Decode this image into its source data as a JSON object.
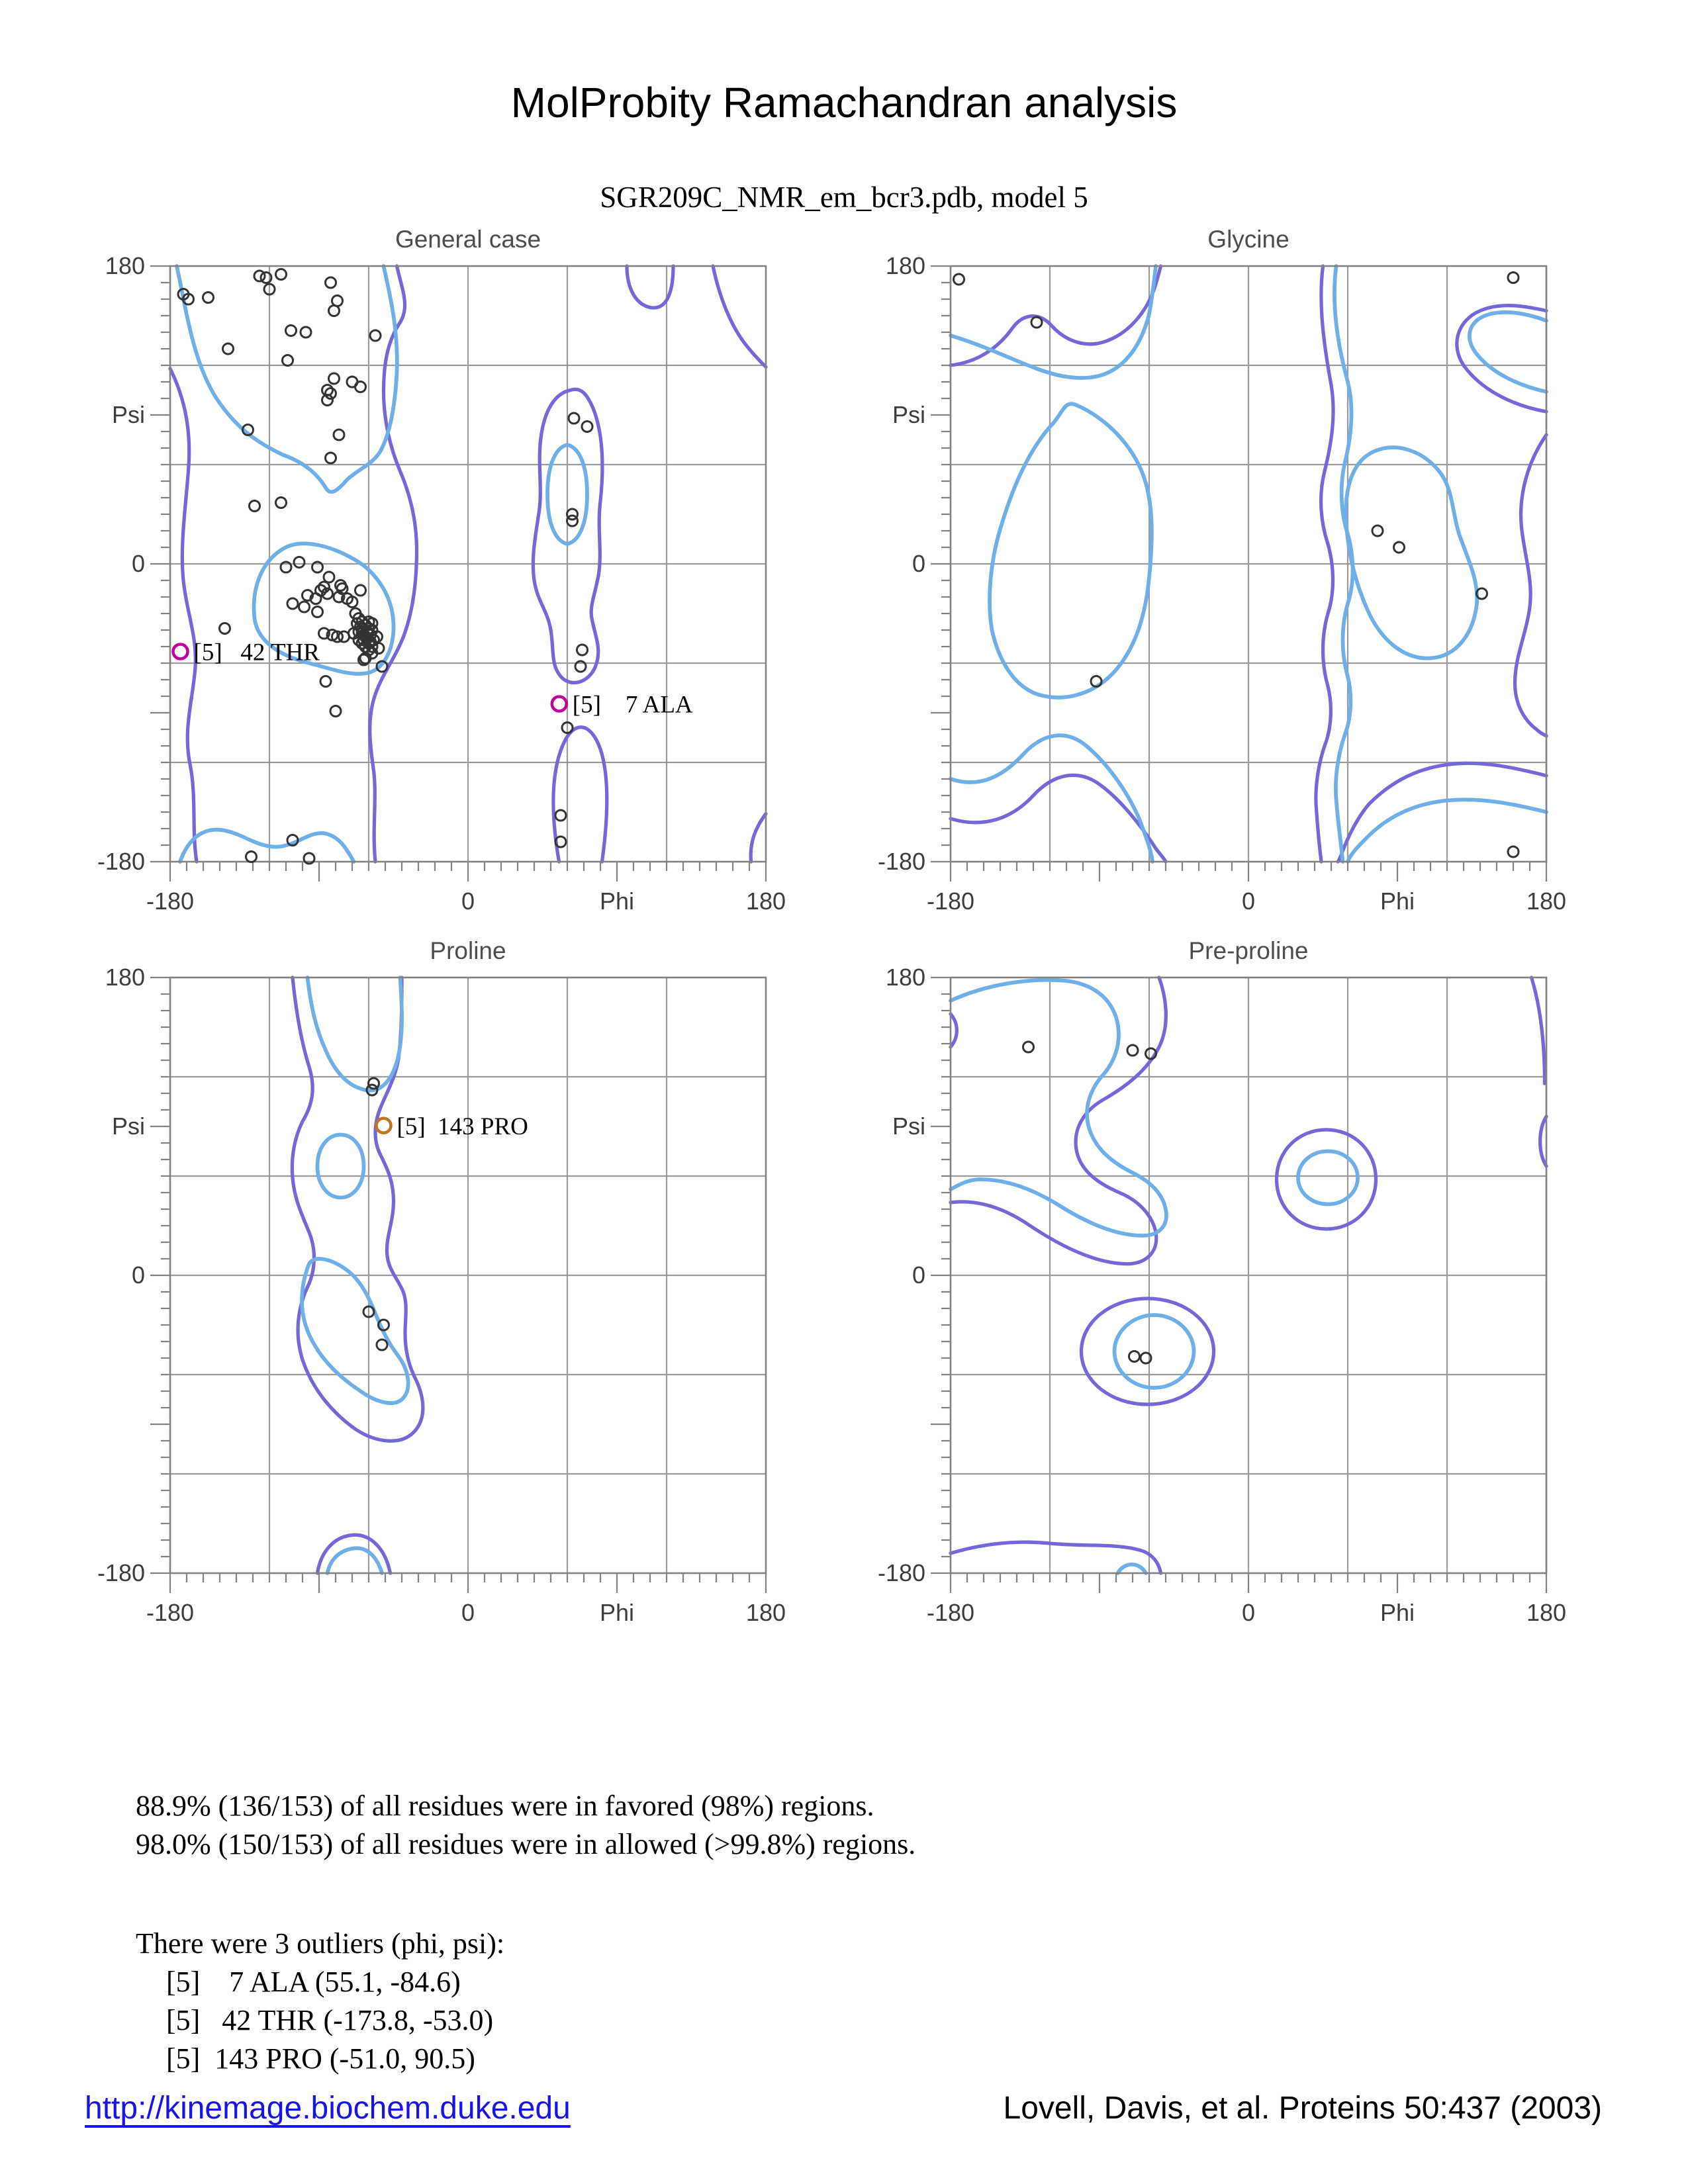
{
  "page": {
    "title": "MolProbity Ramachandran analysis",
    "subtitle": "SGR209C_NMR_em_bcr3.pdb, model 5"
  },
  "colors": {
    "favored_contour": "#6dafe6",
    "allowed_contour": "#7467d8",
    "grid": "#9a9a9a",
    "frame": "#828282",
    "point": "#333333",
    "outlier_magenta": "#c2009b",
    "outlier_orange": "#c4731c",
    "link": "#1813e6"
  },
  "axis_labels": {
    "y_top": "180",
    "y_mid": "Psi",
    "y_zero": "0",
    "y_bottom": "-180",
    "x_left": "-180",
    "x_zero": "0",
    "x_mid": "Phi",
    "x_right": "180"
  },
  "chart_data": [
    {
      "type": "scatter",
      "id": "general-case",
      "title": "General case",
      "xlabel": "Phi",
      "ylabel": "Psi",
      "xlim": [
        -180,
        180
      ],
      "ylim": [
        -180,
        180
      ],
      "points": [
        [
          -126,
          174
        ],
        [
          -122,
          173
        ],
        [
          -113,
          175
        ],
        [
          -120,
          166
        ],
        [
          -83,
          170
        ],
        [
          -172,
          163
        ],
        [
          -169,
          160
        ],
        [
          -157,
          161
        ],
        [
          -79,
          159
        ],
        [
          -81,
          153
        ],
        [
          -107,
          141
        ],
        [
          -98,
          140
        ],
        [
          -56,
          138
        ],
        [
          -145,
          130
        ],
        [
          -109,
          123
        ],
        [
          -81,
          112
        ],
        [
          -70,
          110
        ],
        [
          -65,
          107
        ],
        [
          -85,
          105
        ],
        [
          -83,
          103
        ],
        [
          -85,
          99
        ],
        [
          -133,
          81
        ],
        [
          -78,
          78
        ],
        [
          -83,
          64
        ],
        [
          -113,
          37
        ],
        [
          -129,
          35
        ],
        [
          64,
          88
        ],
        [
          72,
          83
        ],
        [
          63,
          30
        ],
        [
          63,
          26
        ],
        [
          69,
          -52
        ],
        [
          68,
          -62
        ],
        [
          60,
          -99
        ],
        [
          56,
          -152
        ],
        [
          56,
          -168
        ],
        [
          -110,
          -2
        ],
        [
          -102,
          1
        ],
        [
          -91,
          -2
        ],
        [
          -84,
          -8
        ],
        [
          -87,
          -14
        ],
        [
          -89,
          -16
        ],
        [
          -85,
          -18
        ],
        [
          -77,
          -13
        ],
        [
          -76,
          -15
        ],
        [
          -97,
          -19
        ],
        [
          -92,
          -21
        ],
        [
          -106,
          -24
        ],
        [
          -99,
          -26
        ],
        [
          -91,
          -29
        ],
        [
          -78,
          -20
        ],
        [
          -73,
          -21
        ],
        [
          -70,
          -23
        ],
        [
          -65,
          -16
        ],
        [
          -87,
          -42
        ],
        [
          -82,
          -43
        ],
        [
          -79,
          -44
        ],
        [
          -75,
          -44
        ],
        [
          -58,
          -36
        ],
        [
          -55,
          -44
        ],
        [
          -54,
          -51
        ],
        [
          -58,
          -54
        ],
        [
          -62,
          -57
        ],
        [
          -63,
          -58
        ],
        [
          -52,
          -62
        ],
        [
          -86,
          -71
        ],
        [
          -80,
          -89
        ],
        [
          -147,
          -39
        ],
        [
          -68,
          -30
        ],
        [
          -66,
          -33
        ],
        [
          -64,
          -35
        ],
        [
          -62,
          -37
        ],
        [
          -60,
          -39
        ],
        [
          -66,
          -41
        ],
        [
          -63,
          -43
        ],
        [
          -61,
          -45
        ],
        [
          -59,
          -47
        ],
        [
          -64,
          -48
        ],
        [
          -62,
          -50
        ],
        [
          -60,
          -52
        ],
        [
          -58,
          -50
        ],
        [
          -57,
          -46
        ],
        [
          -65,
          -38
        ],
        [
          -67,
          -36
        ],
        [
          -69,
          -42
        ],
        [
          -61,
          -41
        ],
        [
          -59,
          -43
        ],
        [
          -63,
          -46
        ],
        [
          -60,
          -35
        ],
        [
          -58,
          -40
        ],
        [
          -64,
          -42
        ],
        [
          -62,
          -44
        ],
        [
          -66,
          -46
        ],
        [
          -60,
          -48
        ],
        [
          -106,
          -167
        ],
        [
          -131,
          -177
        ],
        [
          -96,
          -178
        ]
      ],
      "outliers": [
        {
          "phi": -173.8,
          "psi": -53.0,
          "label": "[5]   42 THR",
          "color": "#c2009b"
        },
        {
          "phi": 55.1,
          "psi": -84.6,
          "label": "[5]    7 ALA",
          "color": "#c2009b"
        }
      ],
      "contours": {
        "favored": [
          "M -176,180 C -170,152 -166,122 -152,100 C -140,82 -127,73 -112,66 C -101,62 -92,56 -86,46 C -83,41 -79,44 -73,51 C -65,58 -58,60 -53,68 C -47,79 -44,96 -43,116 C -42,141 -47,162 -51,180",
          "M -112,9 C -125,1 -131,-15 -129,-33 C -127,-48 -112,-56 -96,-60 C -84,-63 -71,-68 -61,-66 C -51,-64 -45,-52 -45,-38 C -45,-24 -51,-11 -63,-1 C -77,9 -99,17 -112,9 Z",
          "M -174,-180 C -169,-166 -160,-159 -148,-161 C -136,-163 -128,-171 -116,-171 C -104,-171 -96,-161 -86,-163 C -78,-165 -74,-171 -69,-180",
          "M 60,72 C 52,70 48,58 48,42 C 48,26 52,14 60,12 C 68,14 72,26 72,42 C 72,58 68,70 60,72 Z"
        ],
        "allowed": [
          "M -180,118 C -171,100 -167,80 -169,56 C -171,31 -174,10 -172,-10 C -170,-30 -163,-45 -165,-65 C -167,-85 -172,-101 -168,-121 C -164,-141 -167,-160 -164,-180",
          "M -43,180 C -40,166 -35,156 -41,146 C -49,134 -51,120 -51,104 C -51,87 -47,70 -41,56 C -35,42 -31,26 -31,8 C -31,-10 -33,-28 -39,-44 C -45,-59 -53,-68 -57,-82 C -61,-96 -59,-111 -57,-125 C -55,-141 -58,-161 -56,-180",
          "M 55,-180 C 50,-151 50,-125 58,-108 C 64,-95 74,-95 80,-112 C 86,-130 84,-158 81,-180",
          "M 171,-180 C 170,-168 174,-159 180,-151",
          "M 62,105 C 52,103 46,92 44,76 C 42,60 45,46 43,32 C 41,18 38,4 40,-10 C 42,-23 48,-28 50,-40 C 52,-52 50,-61 56,-68 C 62,-75 73,-72 77,-62 C 81,-52 77,-44 75,-34 C 73,-26 77,-18 79,-6 C 81,8 78,22 80,38 C 82,57 82,77 76,93 C 72,103 68,107 62,105 Z",
          "M 96,180 C 96,167 101,157 110,155 C 120,153 124,164 124,180",
          "M 148,180 C 152,161 159,143 169,131 C 173,126 177,122 180,119"
        ]
      }
    },
    {
      "type": "scatter",
      "id": "glycine",
      "title": "Glycine",
      "xlabel": "Phi",
      "ylabel": "Psi",
      "xlim": [
        -180,
        180
      ],
      "ylim": [
        -180,
        180
      ],
      "points": [
        [
          -175,
          172
        ],
        [
          -128,
          146
        ],
        [
          160,
          173
        ],
        [
          78,
          20
        ],
        [
          91,
          10
        ],
        [
          141,
          -18
        ],
        [
          -92,
          -71
        ],
        [
          160,
          -174
        ]
      ],
      "outliers": [],
      "contours": {
        "favored": [
          "M -180,138 C -160,132 -144,124 -128,118 C -112,112 -96,110 -84,116 C -72,122 -64,135 -60,151 C -58,162 -57,171 -56,180",
          "M 53,180 C 50,156 54,132 60,110 C 64,94 62,76 58,60 C 55,46 56,30 60,18 C 64,4 64,-12 60,-24 C 56,-38 56,-54 60,-68 C 63,-80 62,-94 58,-104 C 54,-116 52,-130 53,-142 C 54,-156 56,-169 57,-180",
          "M -104,96 C -86,88 -70,72 -63,52 C -57,34 -58,12 -60,-8 C -62,-30 -68,-50 -80,-64 C -92,-78 -110,-84 -127,-79 C -142,-74 -151,-58 -155,-40 C -158,-22 -156,1 -150,21 C -143,45 -133,69 -118,85 C -112,92 -111,99 -104,96 Z",
          "M 76,68 C 62,62 58,44 59,26 C 60,8 64,-10 72,-28 C 80,-46 94,-58 110,-57 C 126,-56 136,-42 138,-24 C 139,-10 133,2 128,16 C 123,30 124,44 116,55 C 106,68 90,74 76,68 Z",
          "M -180,-130 C -162,-136 -148,-128 -136,-115 C -124,-102 -110,-100 -98,-110 C -86,-120 -74,-136 -66,-154 C -62,-165 -59,-172 -58,-180",
          "M 180,104 C 162,108 146,116 137,128 C 130,138 134,148 146,151 C 158,154 172,150 180,147",
          "M 180,-150 C 160,-145 140,-141 120,-143 C 100,-145 84,-153 72,-165 C 66,-171 62,-175 60,-180"
        ],
        "allowed": [
          "M -180,120 C -163,122 -151,131 -143,142 C -136,152 -126,152 -119,144 C -110,134 -97,130 -85,135 C -72,140 -62,152 -57,166 C -55,172 -54,176 -53,180",
          "M 45,180 C 42,156 46,130 50,108 C 53,90 50,72 46,56 C 42,40 44,24 48,12 C 52,-2 52,-18 48,-30 C 44,-44 44,-60 48,-74 C 51,-86 50,-100 46,-110 C 42,-122 40,-136 41,-148 C 42,-162 43,-172 44,-180",
          "M -180,-154 C -160,-160 -143,-154 -130,-140 C -117,-126 -102,-124 -89,-134 C -77,-143 -65,-158 -56,-172 C -53,-176 -51,-178 -50,-180",
          "M 180,92 C 158,96 140,106 130,120 C 122,132 126,147 140,153 C 154,159 170,155 180,153",
          "M 180,-128 C 160,-123 141,-119 123,-121 C 103,-123 87,-131 73,-145 C 66,-153 60,-165 56,-176 C 55,-178 55,-179 54,-180",
          "M 180,78 C 169,62 163,42 165,22 C 167,4 172,-10 170,-26 C 168,-42 161,-56 161,-72 C 161,-84 166,-94 174,-100 C 176,-102 178,-103 180,-104"
        ]
      }
    },
    {
      "type": "scatter",
      "id": "proline",
      "title": "Proline",
      "xlabel": "Phi",
      "ylabel": "Psi",
      "xlim": [
        -180,
        180
      ],
      "ylim": [
        -180,
        180
      ],
      "points": [
        [
          -57,
          116
        ],
        [
          -58,
          112
        ],
        [
          -60,
          -22
        ],
        [
          -51,
          -30
        ],
        [
          -52,
          -42
        ]
      ],
      "outliers": [
        {
          "phi": -51.0,
          "psi": 90.5,
          "label": "[5]  143 PRO",
          "color": "#c4731c"
        }
      ],
      "contours": {
        "favored": [
          "M -97,180 C -95,163 -92,149 -86,136 C -80,122 -72,114 -62,112 C -52,110 -45,119 -42,133 C -39,147 -40,164 -41,180",
          "M -77,85 C -69,85 -63,77 -63,66 C -63,55 -69,47 -77,47 C -85,47 -91,55 -91,66 C -91,77 -85,85 -77,85 Z",
          "M -96,7 C -102,-8 -102,-24 -95,-38 C -88,-52 -77,-62 -65,-70 C -55,-77 -44,-80 -39,-74 C -34,-68 -36,-57 -42,-49 C -48,-41 -52,-33 -56,-23 C -60,-13 -65,-3 -73,3 C -81,9 -92,13 -96,7 Z",
          "M -85,-180 C -83,-171 -77,-166 -69,-165 C -61,-164 -55,-170 -52,-180"
        ],
        "allowed": [
          "M -106,180 C -104,160 -101,142 -96,126 C -92,113 -94,103 -100,93 C -105,83 -107,71 -106,59 C -105,46 -100,36 -96,26 C -92,16 -92,5 -96,-5 C -103,-19 -105,-35 -100,-51 C -94,-69 -82,-83 -68,-93 C -56,-101 -41,-103 -33,-95 C -25,-87 -26,-74 -32,-62 C -36,-54 -38,-45 -38,-35 C -38,-25 -36,-16 -40,-8 C -44,0 -49,5 -49,15 C -49,25 -45,33 -45,45 C -45,57 -49,65 -53,73 C -57,81 -57,91 -53,101 C -49,111 -44,119 -42,131 C -40,147 -40,164 -40,180",
          "M -91,-180 C -89,-167 -81,-158 -70,-157 C -59,-156 -50,-165 -47,-180"
        ]
      }
    },
    {
      "type": "scatter",
      "id": "pre-proline",
      "title": "Pre-proline",
      "xlabel": "Phi",
      "ylabel": "Psi",
      "xlim": [
        -180,
        180
      ],
      "ylim": [
        -180,
        180
      ],
      "points": [
        [
          -133,
          138
        ],
        [
          -70,
          136
        ],
        [
          -59,
          134
        ],
        [
          -69,
          -49
        ],
        [
          -62,
          -50
        ]
      ],
      "outliers": [],
      "contours": {
        "favored": [
          "M -180,166 C -158,176 -132,180 -110,178 C -94,176 -84,168 -80,156 C -76,143 -80,130 -88,121 C -96,112 -100,100 -96,88 C -92,76 -82,68 -70,62 C -60,57 -52,50 -50,40 C -48,30 -54,24 -64,24 C -80,24 -98,32 -114,42 C -130,52 -146,58 -162,58 C -170,58 -176,54 -180,52",
          "M 48,75 C 58,75 66,68 66,59 C 66,50 58,43 48,43 C 38,43 30,50 30,59 C 30,68 38,75 48,75 Z",
          "M -57,-24 C -44,-24 -33,-34 -33,-46 C -33,-58 -44,-68 -57,-68 C -70,-68 -81,-58 -81,-46 C -81,-34 -70,-24 -57,-24 Z",
          "M -79,-180 C -75,-173 -66,-173 -62,-180"
        ],
        "allowed": [
          "M -54,180 C -49,166 -48,150 -54,138 C -61,124 -74,114 -88,106 C -100,99 -106,88 -104,76 C -102,64 -92,56 -78,50 C -66,45 -58,36 -56,26 C -54,14 -62,6 -76,7 C -94,8 -114,18 -132,30 C -148,41 -164,46 -180,44",
          "M -180,158 C -175,152 -175,144 -180,138",
          "M 47,88 C 64,88 77,75 77,58 C 77,41 64,28 47,28 C 30,28 17,41 17,58 C 17,75 30,88 47,88 Z",
          "M -61,-14 C -39,-14 -21,-28 -21,-46 C -21,-64 -39,-78 -61,-78 C -83,-78 -101,-64 -101,-46 C -101,-28 -83,-14 -61,-14 Z",
          "M -180,-168 C -160,-162 -140,-160 -120,-162 C -100,-164 -80,-162 -66,-166 C -58,-168 -54,-174 -53,-180",
          "M 171,180 C 176,164 179,142 179,116",
          "M 180,96 C 175,88 175,74 180,66"
        ]
      }
    }
  ],
  "summary": {
    "line1": "88.9% (136/153) of all residues were in favored (98%) regions.",
    "line2": "98.0% (150/153) of all residues were in allowed (>99.8%) regions.",
    "outlier_header": "There were 3 outliers (phi, psi):",
    "outliers": [
      "[5]    7 ALA (55.1, -84.6)",
      "[5]   42 THR (-173.8, -53.0)",
      "[5]  143 PRO (-51.0, 90.5)"
    ]
  },
  "footer": {
    "url": "http://kinemage.biochem.duke.edu",
    "citation": "Lovell, Davis, et al. Proteins 50:437 (2003)"
  }
}
